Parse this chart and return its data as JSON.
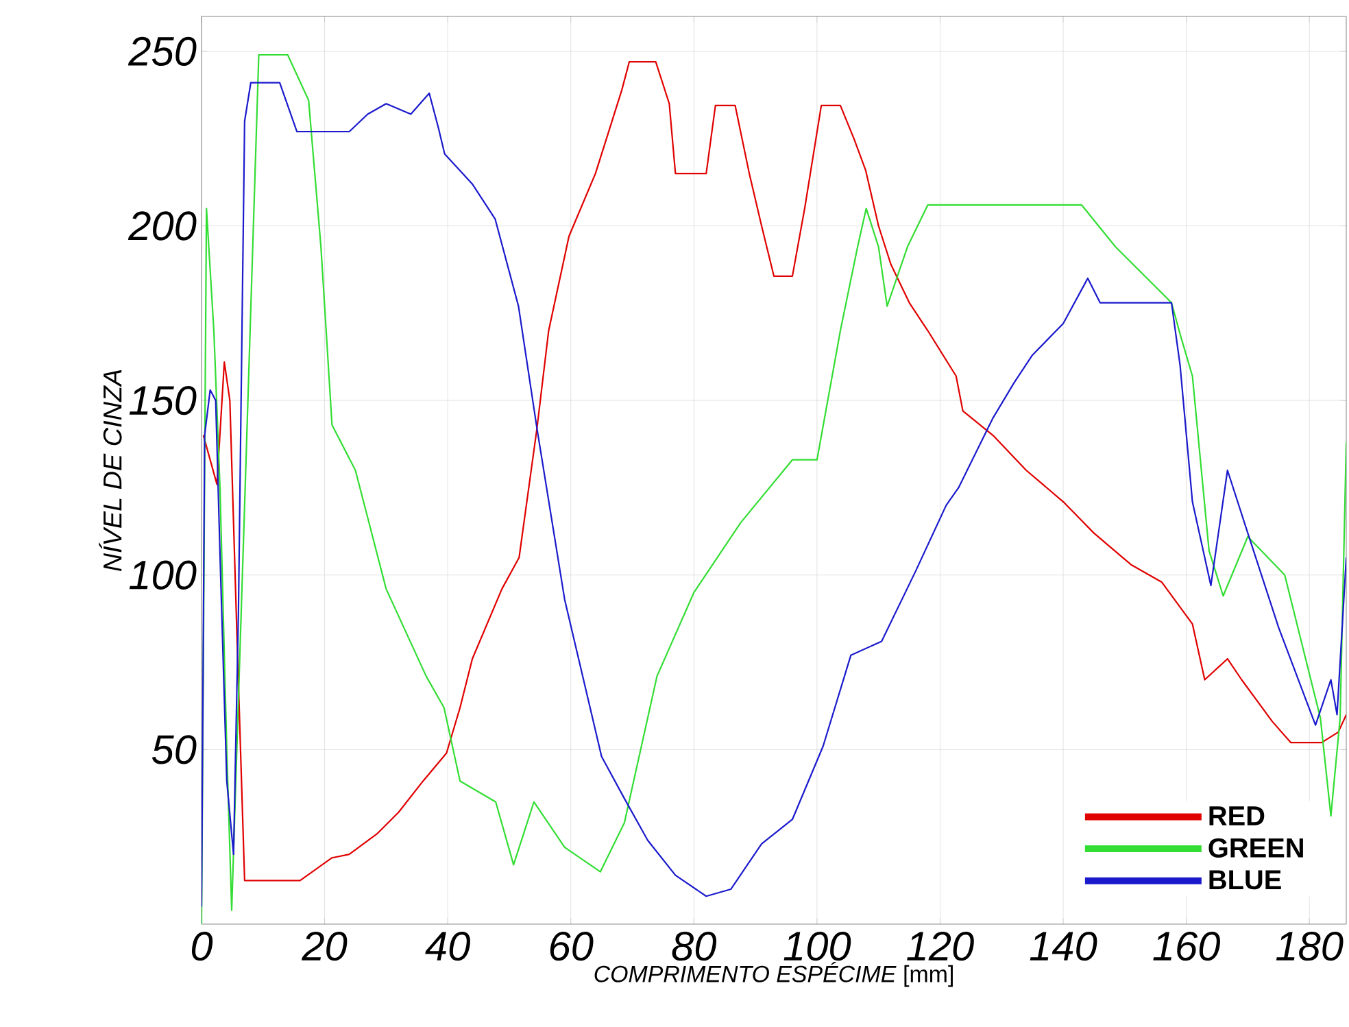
{
  "chart_data": {
    "type": "line",
    "xlabel": "*COMPRIMENTO ESPÉCIME* [mm]",
    "ylabel": "NÍVEL DE CINZA",
    "xlim": [
      0,
      186
    ],
    "ylim": [
      0,
      260
    ],
    "xticks": [
      0,
      20,
      40,
      60,
      80,
      100,
      120,
      140,
      160,
      180
    ],
    "yticks": [
      50,
      100,
      150,
      200,
      250
    ],
    "grid": true,
    "legend": "bottom right",
    "marker": "none",
    "line_style": "solid",
    "series": [
      {
        "name": "RED",
        "color": "#e00000",
        "x": [
          0.3,
          2.5,
          3.7,
          4.6,
          5.8,
          7,
          16,
          18,
          21.2,
          24,
          28.6,
          32,
          36,
          39.8,
          42,
          44,
          48.8,
          51.6,
          54.5,
          56.4,
          59.7,
          64,
          65.8,
          68.3,
          69.5,
          73.8,
          76,
          77,
          82,
          83.5,
          86.7,
          89,
          91,
          93,
          96,
          98,
          100.7,
          103.8,
          106,
          107.9,
          110,
          112,
          115,
          118,
          122.6,
          123.7,
          128.6,
          134,
          140,
          145,
          151,
          156,
          161,
          163,
          166.7,
          169,
          174,
          177,
          182,
          184.7,
          186
        ],
        "values": [
          140,
          126,
          161,
          150,
          80,
          12.5,
          12.5,
          15,
          19,
          20,
          26,
          32,
          41,
          49,
          62,
          76,
          96,
          105,
          142,
          170,
          197,
          215,
          225,
          239,
          247,
          247,
          235,
          215,
          215,
          234.5,
          234.5,
          215,
          200,
          185.6,
          185.6,
          205,
          234.5,
          234.5,
          225,
          216,
          200,
          189,
          178,
          170,
          157,
          147,
          140,
          130,
          121,
          112,
          103,
          98,
          86,
          70,
          76,
          70,
          58,
          52,
          52,
          55,
          60
        ]
      },
      {
        "name": "GREEN",
        "color": "#33dd33",
        "x": [
          0,
          0.8,
          2,
          3,
          4.1,
          4.9,
          7,
          9.3,
          14,
          17.4,
          19.4,
          21.2,
          25,
          30,
          36.5,
          39.4,
          42,
          47.8,
          50.7,
          54,
          59,
          64.8,
          68.7,
          74,
          80,
          87.6,
          96,
          100,
          103.8,
          106.6,
          108,
          110,
          111.4,
          114.7,
          118,
          143,
          148.5,
          157.6,
          159,
          161,
          163.7,
          166,
          170,
          176,
          181.8,
          183.5,
          185,
          186
        ],
        "values": [
          0,
          205,
          170,
          125,
          50,
          4,
          120,
          249,
          249,
          236,
          194,
          143,
          130,
          96,
          71,
          62,
          41,
          35,
          17,
          35,
          22,
          15,
          29,
          71,
          95,
          115,
          133,
          133,
          170,
          194,
          205,
          194,
          177,
          194,
          206,
          206,
          194,
          178,
          169,
          157,
          107,
          94,
          111,
          100,
          59,
          31,
          59,
          138
        ]
      },
      {
        "name": "BLUE",
        "color": "#1a1acc",
        "x": [
          0,
          0.5,
          1.4,
          2.3,
          3,
          4.1,
          5.2,
          6,
          7,
          8,
          12.7,
          15.5,
          24,
          27,
          30,
          34,
          37,
          38.5,
          39.5,
          44,
          47.7,
          51.5,
          54.5,
          59,
          65,
          68.7,
          72.5,
          77,
          82,
          86,
          91,
          96,
          101,
          105.5,
          110.5,
          116,
          121,
          123,
          128.6,
          132,
          135,
          140,
          144,
          146,
          150,
          157.6,
          159,
          161,
          164,
          166.7,
          170,
          175,
          181,
          183.5,
          184.5,
          186
        ],
        "values": [
          5,
          140,
          153,
          150,
          106,
          41,
          20,
          90,
          230,
          241,
          241,
          227,
          227,
          232,
          235,
          232,
          238,
          228,
          220.6,
          212,
          202,
          177,
          142,
          93,
          48,
          36,
          24,
          14,
          8,
          10,
          23,
          30,
          51,
          77,
          81,
          101,
          120,
          125,
          145,
          155,
          163,
          172,
          185,
          178,
          178,
          178,
          160,
          121,
          97,
          130,
          112,
          85,
          57,
          70,
          60,
          105
        ]
      }
    ]
  }
}
